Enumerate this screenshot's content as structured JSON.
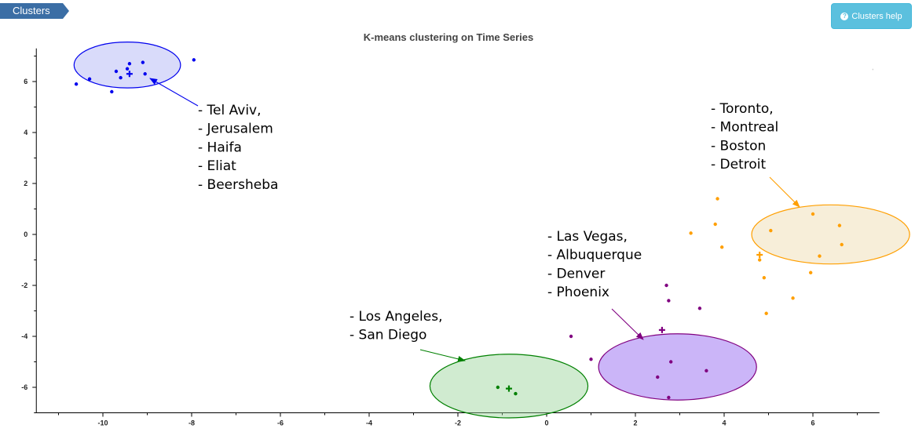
{
  "tab": {
    "label": "Clusters"
  },
  "help_button": {
    "label": "Clusters help",
    "icon": "question-circle-icon"
  },
  "chart_data": {
    "type": "scatter",
    "title": "K-means clustering on Time Series",
    "xlabel": "",
    "ylabel": "",
    "xlim": [
      -11.5,
      7.5
    ],
    "ylim": [
      -7,
      7.3
    ],
    "x_ticks": [
      -10,
      -8,
      -6,
      -4,
      -2,
      0,
      2,
      4,
      6
    ],
    "y_ticks": [
      -6,
      -4,
      -2,
      0,
      2,
      4,
      6
    ],
    "grid": false,
    "clusters": [
      {
        "color": "#0000ee",
        "fill": "rgba(80,90,230,0.22)",
        "centroid": [
          -9.4,
          6.3
        ],
        "points": [
          [
            -10.6,
            5.9
          ],
          [
            -10.3,
            6.1
          ],
          [
            -9.8,
            5.6
          ],
          [
            -9.7,
            6.4
          ],
          [
            -9.6,
            6.15
          ],
          [
            -9.45,
            6.5
          ],
          [
            -9.4,
            6.7
          ],
          [
            -9.1,
            6.75
          ],
          [
            -9.05,
            6.3
          ],
          [
            -7.95,
            6.85
          ]
        ],
        "members": [
          "- Tel Aviv,",
          "- Jerusalem",
          "- Haifa",
          "- Eliat",
          "- Beersheba"
        ]
      },
      {
        "color": "#ff9f00",
        "fill": "rgba(230,200,130,0.3)",
        "centroid": [
          4.8,
          -0.8
        ],
        "points": [
          [
            3.25,
            0.05
          ],
          [
            3.8,
            0.4
          ],
          [
            3.85,
            1.4
          ],
          [
            3.95,
            -0.5
          ],
          [
            4.8,
            -1.0
          ],
          [
            4.9,
            -1.7
          ],
          [
            4.95,
            -3.1
          ],
          [
            5.05,
            0.15
          ],
          [
            5.55,
            -2.5
          ],
          [
            5.95,
            -1.5
          ],
          [
            6.0,
            0.8
          ],
          [
            6.15,
            -0.85
          ],
          [
            6.6,
            0.35
          ],
          [
            6.65,
            -0.4
          ]
        ],
        "members": [
          "- Toronto,",
          "- Montreal",
          "- Boston",
          "- Detroit"
        ]
      },
      {
        "color": "#800080",
        "fill": "rgba(140,90,240,0.45)",
        "centroid": [
          2.6,
          -3.75
        ],
        "points": [
          [
            0.55,
            -4.0
          ],
          [
            1.0,
            -4.9
          ],
          [
            2.5,
            -5.6
          ],
          [
            2.7,
            -2.0
          ],
          [
            2.75,
            -2.6
          ],
          [
            2.75,
            -6.4
          ],
          [
            2.8,
            -5.0
          ],
          [
            3.45,
            -2.9
          ],
          [
            3.6,
            -5.35
          ]
        ],
        "members": [
          "- Las Vegas,",
          "- Albuquerque",
          "- Denver",
          "- Phoenix"
        ]
      },
      {
        "color": "#008000",
        "fill": "rgba(150,210,150,0.45)",
        "centroid": [
          -0.85,
          -6.05
        ],
        "points": [
          [
            -1.1,
            -6.0
          ],
          [
            -0.7,
            -6.25
          ]
        ],
        "members": [
          "- Los Angeles,",
          "- San Diego"
        ]
      }
    ]
  }
}
